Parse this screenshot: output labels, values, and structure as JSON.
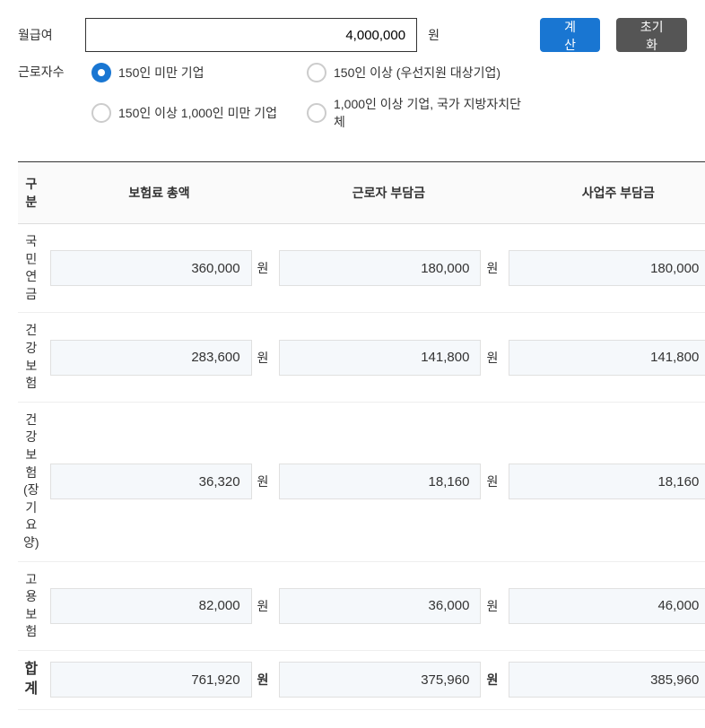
{
  "form": {
    "salary_label": "월급여",
    "salary_value": "4,000,000",
    "unit": "원",
    "calc_btn": "계산",
    "reset_btn": "초기화",
    "workers_label": "근로자수",
    "radios": [
      {
        "label": "150인 미만 기업",
        "checked": true
      },
      {
        "label": "150인 이상 (우선지원 대상기업)",
        "checked": false
      },
      {
        "label": "150인 이상 1,000인 미만 기업",
        "checked": false
      },
      {
        "label": "1,000인 이상 기업, 국가 지방자치단체",
        "checked": false
      }
    ]
  },
  "table": {
    "headers": [
      "구분",
      "보험료 총액",
      "근로자 부담금",
      "사업주 부담금"
    ],
    "rows": [
      {
        "label": "국민연금",
        "total": "360,000",
        "worker": "180,000",
        "employer": "180,000"
      },
      {
        "label": "건강보험",
        "total": "283,600",
        "worker": "141,800",
        "employer": "141,800"
      },
      {
        "label": "건강보험\n(장기요양)",
        "total": "36,320",
        "worker": "18,160",
        "employer": "18,160"
      },
      {
        "label": "고용보험",
        "total": "82,000",
        "worker": "36,000",
        "employer": "46,000"
      }
    ],
    "total": {
      "label": "합계",
      "total": "761,920",
      "worker": "375,960",
      "employer": "385,960"
    }
  },
  "colors": {
    "primary": "#1976d2",
    "dark": "#555",
    "border": "#333",
    "cell_bg": "#f5f8fb"
  }
}
